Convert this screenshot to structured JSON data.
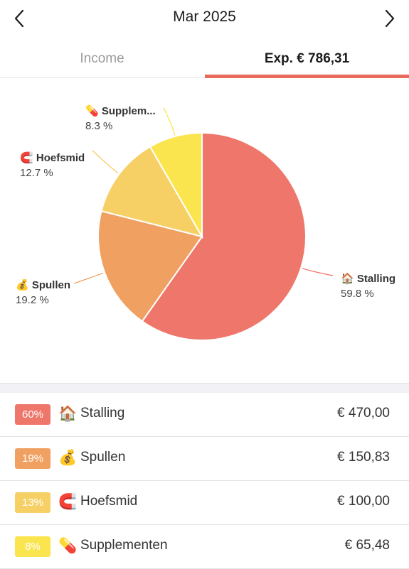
{
  "header": {
    "title": "Mar 2025",
    "prev_icon": "chevron-left-icon",
    "next_icon": "chevron-right-icon"
  },
  "tabs": {
    "income_label": "Income",
    "expense_label": "Exp. € 786,31",
    "active": "expense"
  },
  "chart_data": {
    "type": "pie",
    "slices": [
      {
        "name": "Stalling",
        "emoji": "🏠",
        "chart_label": "Stalling",
        "percent_label": "59.8 %",
        "value": 470.0,
        "color": "#ee766a"
      },
      {
        "name": "Spullen",
        "emoji": "💰",
        "chart_label": "Spullen",
        "percent_label": "19.2 %",
        "value": 150.83,
        "color": "#f0a061"
      },
      {
        "name": "Hoefsmid",
        "emoji": "🧲",
        "chart_label": "Hoefsmid",
        "percent_label": "12.7 %",
        "value": 100.0,
        "color": "#f6d065"
      },
      {
        "name": "Supplementen",
        "emoji": "💊",
        "chart_label": "Supplem...",
        "percent_label": "8.3 %",
        "value": 65.48,
        "color": "#fbe54e"
      }
    ]
  },
  "list": [
    {
      "badge": "60%",
      "emoji": "🏠",
      "label": "Stalling",
      "amount": "€ 470,00",
      "color": "#ee766a"
    },
    {
      "badge": "19%",
      "emoji": "💰",
      "label": "Spullen",
      "amount": "€ 150,83",
      "color": "#f0a061"
    },
    {
      "badge": "13%",
      "emoji": "🧲",
      "label": "Hoefsmid",
      "amount": "€ 100,00",
      "color": "#f6d065"
    },
    {
      "badge": "8%",
      "emoji": "💊",
      "label": "Supplementen",
      "amount": "€ 65,48",
      "color": "#fbe54e"
    }
  ]
}
